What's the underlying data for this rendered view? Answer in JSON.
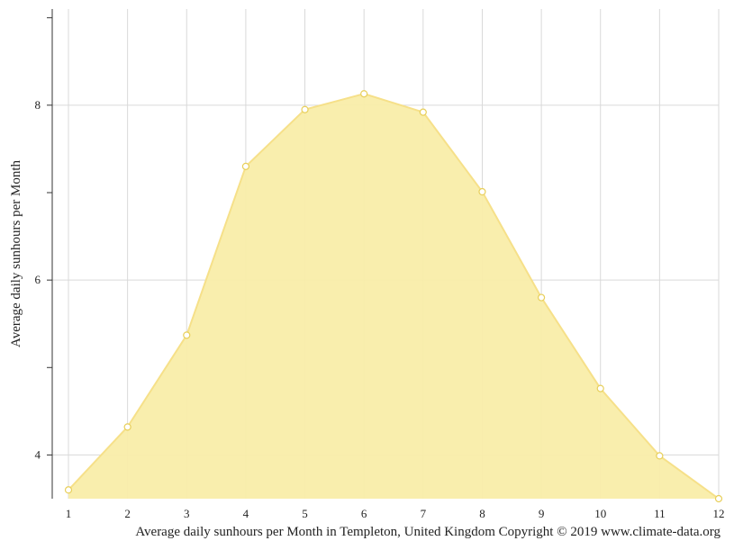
{
  "chart_data": {
    "type": "area",
    "title": "",
    "xlabel": "",
    "ylabel": "Average daily sunhours per Month",
    "caption": "Average daily sunhours per Month in Templeton, United Kingdom Copyright © 2019 www.climate-data.org",
    "x": [
      1,
      2,
      3,
      4,
      5,
      6,
      7,
      8,
      9,
      10,
      11,
      12
    ],
    "x_tick_labels": [
      "1",
      "2",
      "3",
      "4",
      "5",
      "6",
      "7",
      "8",
      "9",
      "10",
      "11",
      "12"
    ],
    "y_tick_labels": [
      "4",
      "6",
      "8"
    ],
    "y_ticks": [
      4,
      5,
      6,
      7,
      8,
      9
    ],
    "series": [
      {
        "values": [
          3.6,
          4.32,
          5.37,
          7.3,
          7.95,
          8.13,
          7.92,
          7.01,
          5.8,
          4.76,
          3.99,
          3.5
        ]
      }
    ],
    "xlim": [
      1,
      12
    ],
    "ylim": [
      3.5,
      9.1
    ],
    "grid": true,
    "legend": "none",
    "colors": {
      "fill": "#f9eda9",
      "line": "#f6e089",
      "marker_stroke": "#e8cf5a",
      "grid": "#d9d9d9",
      "axis": "#333333"
    }
  }
}
